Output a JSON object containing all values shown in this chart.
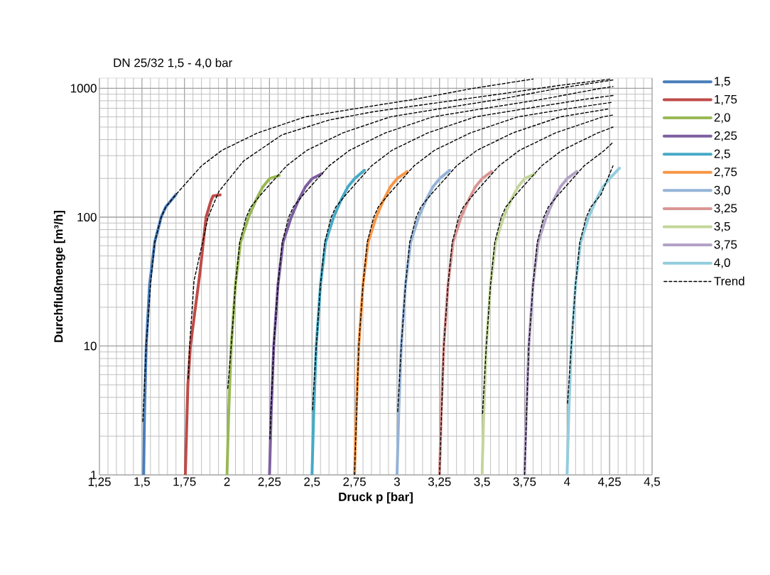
{
  "chart_data": {
    "type": "line",
    "title": "DN 25/32    1,5 - 4,0 bar",
    "xlabel": "Druck p [bar]",
    "ylabel": "Durchflußmenge [m³/h]",
    "log": "y",
    "grid": true,
    "legend": "right",
    "xlim": [
      1.25,
      4.5
    ],
    "ylim": [
      1,
      1200
    ],
    "xticks": [
      {
        "value": 1.25,
        "label": "1,25"
      },
      {
        "value": 1.5,
        "label": "1,5"
      },
      {
        "value": 1.75,
        "label": "1,75"
      },
      {
        "value": 2,
        "label": "2"
      },
      {
        "value": 2.25,
        "label": "2,25"
      },
      {
        "value": 2.5,
        "label": "2,5"
      },
      {
        "value": 2.75,
        "label": "2,75"
      },
      {
        "value": 3,
        "label": "3"
      },
      {
        "value": 3.25,
        "label": "3,25"
      },
      {
        "value": 3.5,
        "label": "3,5"
      },
      {
        "value": 3.75,
        "label": "3,75"
      },
      {
        "value": 4,
        "label": "4"
      },
      {
        "value": 4.25,
        "label": "4,25"
      },
      {
        "value": 4.5,
        "label": "4,5"
      }
    ],
    "yticks": [
      1,
      10,
      100,
      1000
    ],
    "series": [
      {
        "name": "1,5",
        "color": "#4a7ebb",
        "x": [
          1.51,
          1.515,
          1.525,
          1.545,
          1.575,
          1.613,
          1.64,
          1.7
        ],
        "values": [
          1,
          3,
          10,
          30,
          64,
          100,
          120,
          150
        ]
      },
      {
        "name": "1,75",
        "color": "#be4b48",
        "x": [
          1.755,
          1.77,
          1.785,
          1.842,
          1.877,
          1.905,
          1.918,
          1.96
        ],
        "values": [
          1,
          5,
          10,
          38,
          100,
          133,
          146,
          149
        ]
      },
      {
        "name": "2,0",
        "color": "#98b954",
        "x": [
          2.0,
          2.01,
          2.025,
          2.05,
          2.08,
          2.127,
          2.17,
          2.21,
          2.25,
          2.307
        ],
        "values": [
          1,
          3,
          10,
          30,
          64,
          100,
          135,
          171,
          199,
          210
        ]
      },
      {
        "name": "2,25",
        "color": "#7d60a0",
        "x": [
          2.25,
          2.26,
          2.275,
          2.3,
          2.33,
          2.378,
          2.42,
          2.46,
          2.5,
          2.557
        ],
        "values": [
          1,
          3,
          10,
          30,
          64,
          100,
          135,
          171,
          199,
          217
        ]
      },
      {
        "name": "2,5",
        "color": "#46aac5",
        "x": [
          2.5,
          2.51,
          2.525,
          2.55,
          2.58,
          2.627,
          2.67,
          2.71,
          2.75,
          2.808
        ],
        "values": [
          1,
          3,
          10,
          30,
          64,
          100,
          135,
          171,
          199,
          231
        ]
      },
      {
        "name": "2,75",
        "color": "#f79646",
        "x": [
          2.75,
          2.76,
          2.775,
          2.8,
          2.83,
          2.877,
          2.92,
          2.96,
          3.0,
          3.06
        ],
        "values": [
          1,
          3,
          10,
          30,
          64,
          100,
          135,
          171,
          199,
          226
        ]
      },
      {
        "name": "3,0",
        "color": "#95b3d7",
        "x": [
          3.0,
          3.01,
          3.025,
          3.05,
          3.08,
          3.127,
          3.17,
          3.21,
          3.25,
          3.31
        ],
        "values": [
          1,
          3,
          10,
          30,
          64,
          100,
          135,
          171,
          199,
          231
        ]
      },
      {
        "name": "3,25",
        "color": "#d99694",
        "x": [
          3.25,
          3.26,
          3.275,
          3.3,
          3.33,
          3.377,
          3.42,
          3.46,
          3.5,
          3.556
        ],
        "values": [
          1,
          3,
          10,
          30,
          64,
          100,
          135,
          171,
          199,
          226
        ]
      },
      {
        "name": "3,5",
        "color": "#c3d69b",
        "x": [
          3.5,
          3.51,
          3.525,
          3.55,
          3.58,
          3.627,
          3.67,
          3.71,
          3.75,
          3.81
        ],
        "values": [
          1,
          3,
          10,
          30,
          64,
          100,
          135,
          171,
          199,
          217
        ]
      },
      {
        "name": "3,75",
        "color": "#b3a2c7",
        "x": [
          3.75,
          3.76,
          3.775,
          3.8,
          3.83,
          3.877,
          3.92,
          3.96,
          4.0,
          4.057
        ],
        "values": [
          1,
          3,
          10,
          30,
          64,
          100,
          135,
          171,
          199,
          226
        ]
      },
      {
        "name": "4,0",
        "color": "#93cddd",
        "x": [
          4.0,
          4.01,
          4.025,
          4.05,
          4.08,
          4.127,
          4.17,
          4.21,
          4.25,
          4.308
        ],
        "values": [
          1,
          3,
          10,
          30,
          64,
          100,
          135,
          171,
          199,
          240
        ]
      },
      {
        "name": "Trend",
        "color": "#000000",
        "line_style": "dashed",
        "x": [
          1.505,
          1.525,
          1.55,
          1.575,
          1.613,
          1.64,
          1.7,
          1.85,
          1.97,
          2.18,
          2.46,
          2.74,
          3.1,
          3.45,
          3.8
        ],
        "values": [
          2.6,
          10,
          30,
          64,
          100,
          120,
          150,
          250,
          330,
          450,
          600,
          690,
          820,
          1000,
          1180
        ]
      },
      {
        "color": "#000000",
        "line_style": "dashed",
        "x": [
          1.772,
          1.78,
          1.806,
          1.889,
          1.952,
          2.098,
          2.323,
          2.6,
          2.867,
          3.2,
          3.6,
          3.95,
          4.26
        ],
        "values": [
          5.6,
          10,
          32,
          100,
          158,
          273,
          435,
          567,
          660,
          760,
          900,
          1050,
          1180
        ]
      },
      {
        "color": "#000000",
        "line_style": "dashed",
        "x": [
          2.005,
          2.025,
          2.05,
          2.075,
          2.113,
          2.14,
          2.2,
          2.35,
          2.47,
          2.68,
          2.96,
          3.24,
          3.6,
          3.95,
          4.27
        ],
        "values": [
          4.7,
          10,
          30,
          64,
          100,
          120,
          150,
          250,
          330,
          450,
          600,
          690,
          820,
          1000,
          1160
        ]
      },
      {
        "color": "#000000",
        "line_style": "dashed",
        "x": [
          2.252,
          2.275,
          2.3,
          2.325,
          2.363,
          2.39,
          2.45,
          2.6,
          2.72,
          2.93,
          3.21,
          3.49,
          3.85,
          4.2,
          4.27
        ],
        "values": [
          1.9,
          10,
          30,
          64,
          100,
          120,
          150,
          250,
          330,
          450,
          600,
          690,
          820,
          1000,
          1030
        ]
      },
      {
        "color": "#000000",
        "line_style": "dashed",
        "x": [
          2.503,
          2.525,
          2.55,
          2.575,
          2.613,
          2.64,
          2.7,
          2.85,
          2.97,
          3.18,
          3.46,
          3.74,
          4.1,
          4.27
        ],
        "values": [
          3.2,
          10,
          30,
          64,
          100,
          120,
          150,
          250,
          330,
          450,
          600,
          690,
          820,
          880
        ]
      },
      {
        "color": "#000000",
        "line_style": "dashed",
        "x": [
          2.75,
          2.775,
          2.8,
          2.825,
          2.863,
          2.89,
          2.95,
          3.1,
          3.22,
          3.43,
          3.71,
          3.99,
          4.27
        ],
        "values": [
          1.0,
          10,
          30,
          64,
          100,
          120,
          150,
          250,
          330,
          450,
          600,
          690,
          780
        ]
      },
      {
        "color": "#000000",
        "line_style": "dashed",
        "x": [
          3.004,
          3.025,
          3.05,
          3.075,
          3.113,
          3.14,
          3.2,
          3.35,
          3.47,
          3.68,
          3.96,
          4.24
        ],
        "values": [
          3.1,
          10,
          30,
          64,
          100,
          120,
          150,
          250,
          330,
          450,
          600,
          690
        ]
      },
      {
        "color": "#000000",
        "line_style": "dashed",
        "x": [
          3.25,
          3.275,
          3.3,
          3.325,
          3.363,
          3.39,
          3.45,
          3.6,
          3.72,
          3.93,
          4.21,
          4.27
        ],
        "values": [
          1.0,
          10,
          30,
          64,
          100,
          120,
          150,
          250,
          330,
          450,
          600,
          620
        ]
      },
      {
        "color": "#000000",
        "line_style": "dashed",
        "x": [
          3.503,
          3.525,
          3.55,
          3.575,
          3.613,
          3.64,
          3.7,
          3.85,
          3.97,
          4.18,
          4.27
        ],
        "values": [
          3.0,
          10,
          30,
          64,
          100,
          120,
          150,
          250,
          330,
          450,
          500
        ]
      },
      {
        "color": "#000000",
        "line_style": "dashed",
        "x": [
          3.75,
          3.775,
          3.8,
          3.825,
          3.863,
          3.89,
          3.95,
          4.1,
          4.22,
          4.27
        ],
        "values": [
          1.0,
          10,
          30,
          64,
          100,
          120,
          150,
          250,
          330,
          380
        ]
      },
      {
        "color": "#000000",
        "line_style": "dashed",
        "x": [
          4.003,
          4.025,
          4.05,
          4.075,
          4.113,
          4.14,
          4.2,
          4.27
        ],
        "values": [
          3.6,
          10,
          30,
          64,
          100,
          120,
          150,
          250
        ]
      }
    ]
  }
}
